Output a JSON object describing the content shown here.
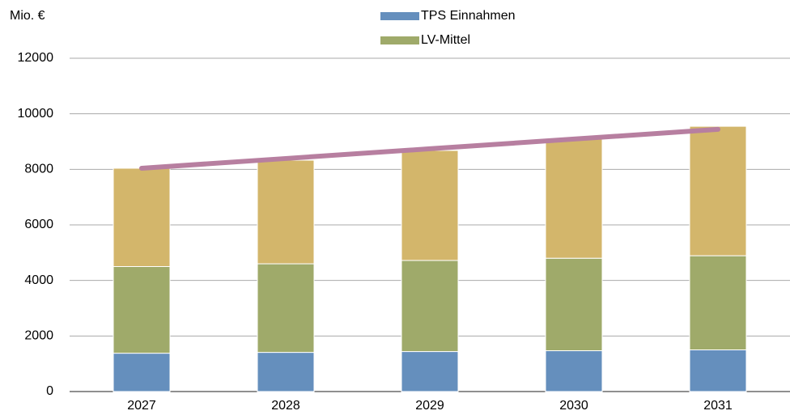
{
  "chart_data": {
    "type": "bar",
    "stacked": true,
    "y_label": "Mio. €",
    "categories": [
      "2027",
      "2028",
      "2029",
      "2030",
      "2031"
    ],
    "series": [
      {
        "name": "TPS Einnahmen",
        "color": "#658fbd",
        "values": [
          1380,
          1410,
          1440,
          1470,
          1500
        ]
      },
      {
        "name": "LV-Mittel",
        "color": "#9faa6a",
        "values": [
          3120,
          3190,
          3280,
          3330,
          3390
        ]
      },
      {
        "color": "#d3b66b",
        "values": [
          3540,
          3730,
          3960,
          4290,
          4660
        ]
      },
      {
        "type": "line",
        "color": "#b77fa0",
        "values": [
          8040,
          8390,
          8740,
          9090,
          9440
        ]
      }
    ],
    "ylim": [
      0,
      12000
    ],
    "yticks": [
      0,
      2000,
      4000,
      6000,
      8000,
      10000,
      12000
    ],
    "grid": true
  }
}
